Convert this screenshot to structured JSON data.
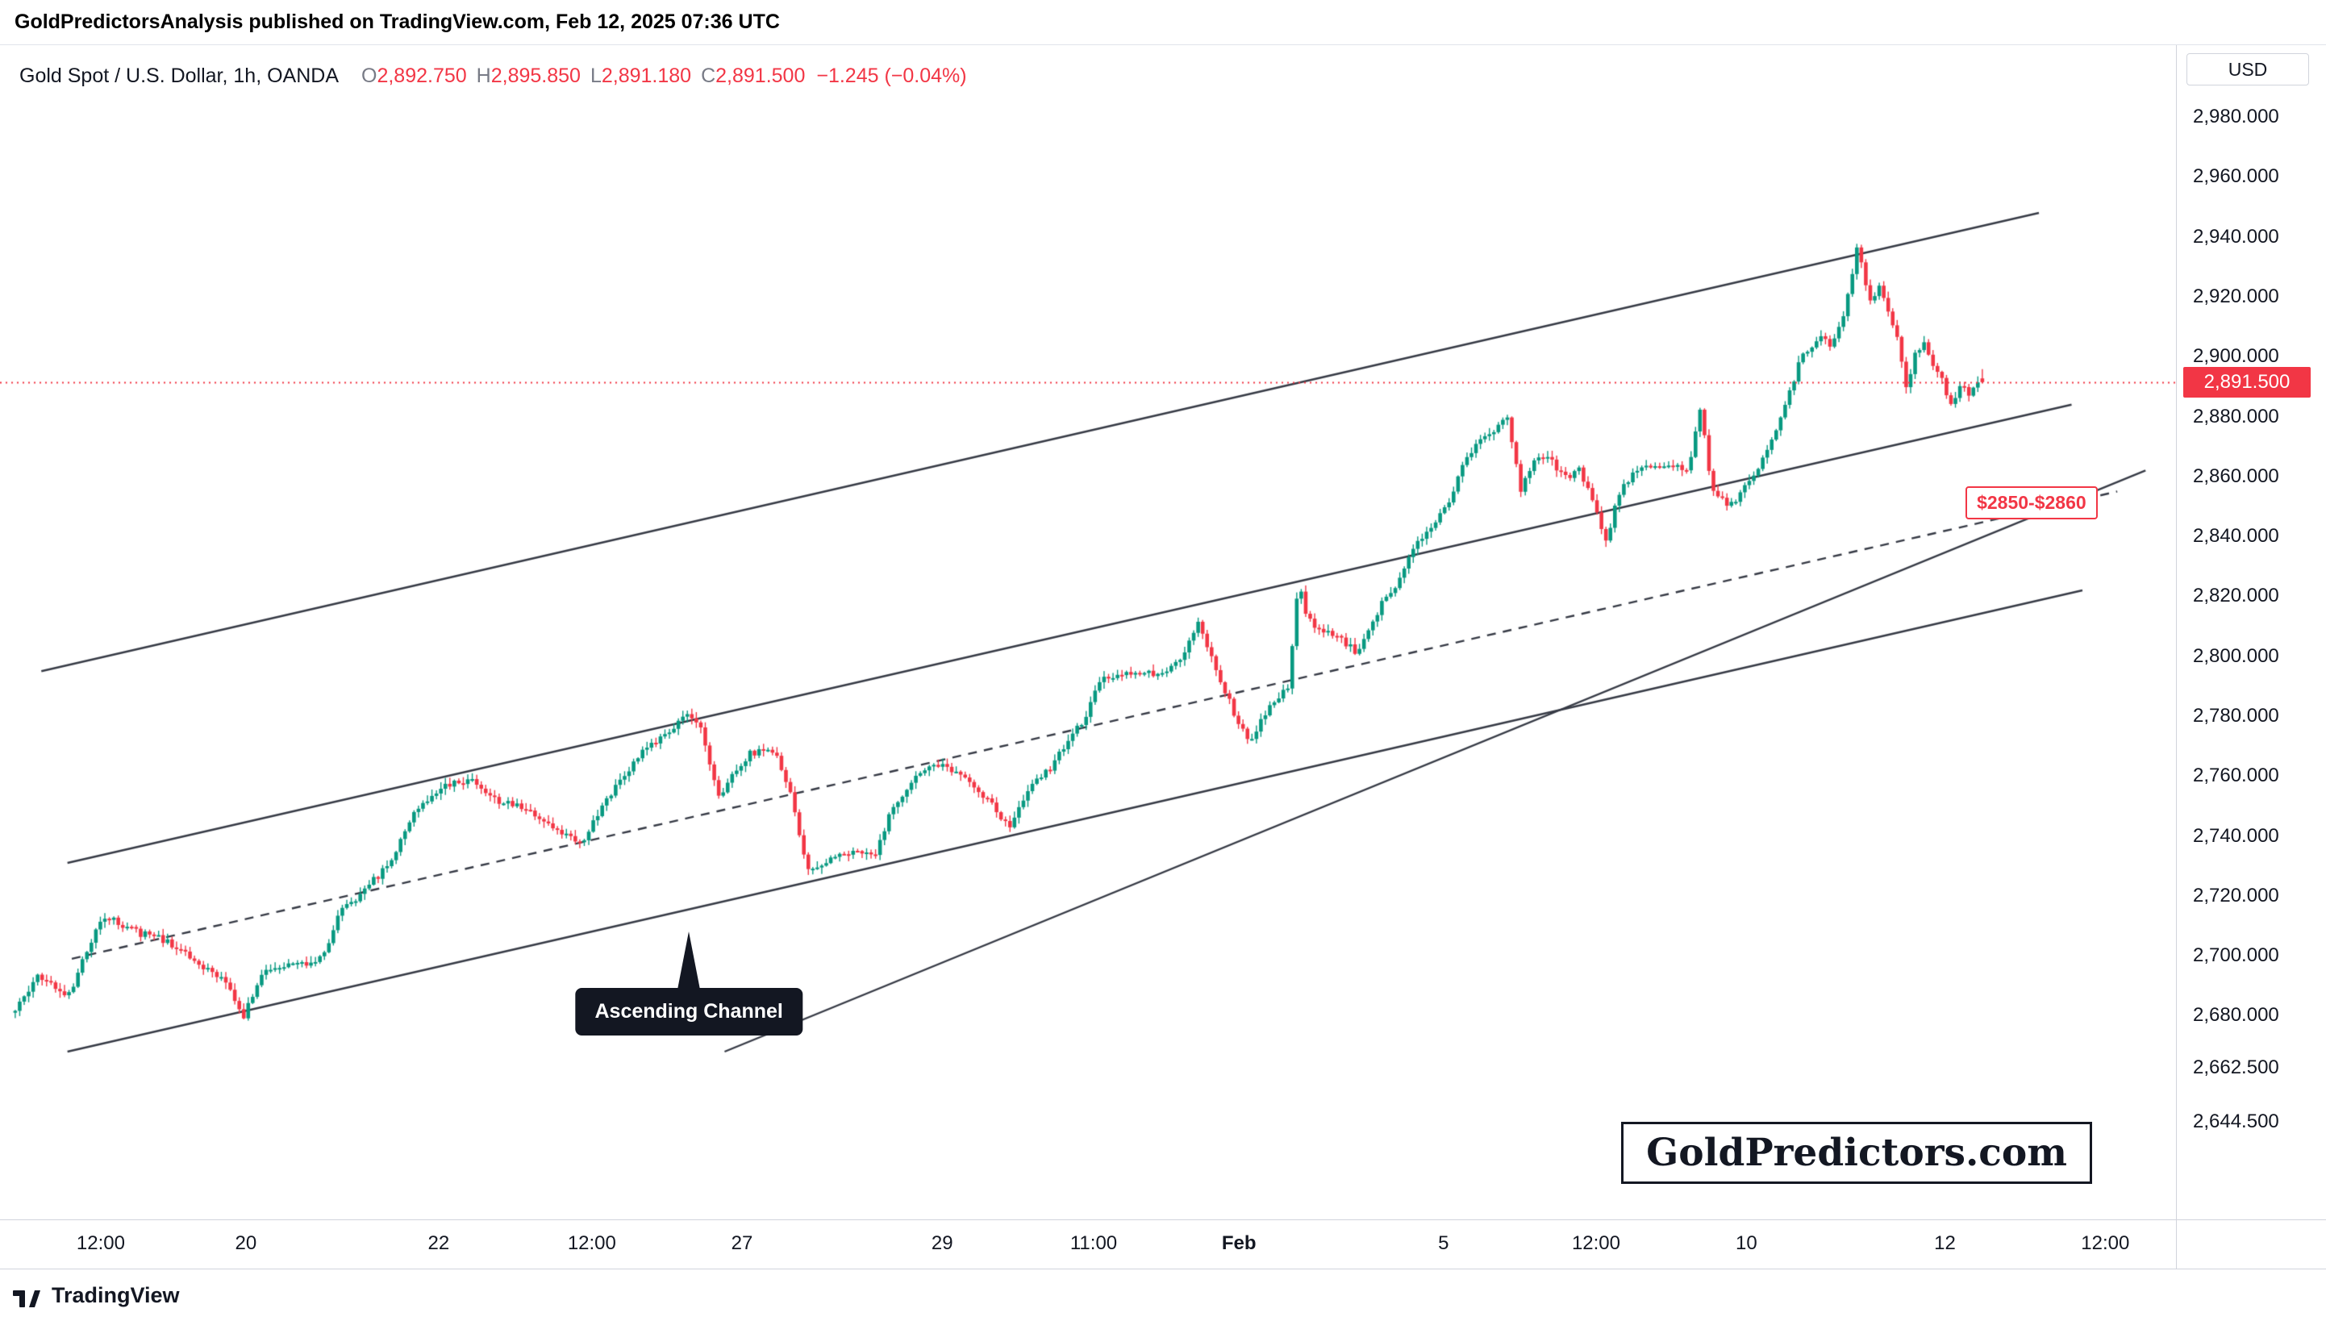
{
  "topbar": {
    "text": "GoldPredictorsAnalysis published on TradingView.com, Feb 12, 2025 07:36 UTC"
  },
  "header": {
    "symbol_line": "Gold Spot / U.S. Dollar, 1h, OANDA",
    "o_label": "O",
    "o": "2,892.750",
    "h_label": "H",
    "h": "2,895.850",
    "l_label": "L",
    "l": "2,891.180",
    "c_label": "C",
    "c": "2,891.500",
    "change": "−1.245 (−0.04%)"
  },
  "axis": {
    "currency": "USD",
    "badge": {
      "label": "2,891.500",
      "price": 2891.5,
      "color": "#F23645"
    },
    "ticks": [
      {
        "price": 2980,
        "label": "2,980.000"
      },
      {
        "price": 2960,
        "label": "2,960.000"
      },
      {
        "price": 2940,
        "label": "2,940.000"
      },
      {
        "price": 2920,
        "label": "2,920.000"
      },
      {
        "price": 2900,
        "label": "2,900.000"
      },
      {
        "price": 2880,
        "label": "2,880.000"
      },
      {
        "price": 2860,
        "label": "2,860.000"
      },
      {
        "price": 2840,
        "label": "2,840.000"
      },
      {
        "price": 2820,
        "label": "2,820.000"
      },
      {
        "price": 2800,
        "label": "2,800.000"
      },
      {
        "price": 2780,
        "label": "2,780.000"
      },
      {
        "price": 2760,
        "label": "2,760.000"
      },
      {
        "price": 2740,
        "label": "2,740.000"
      },
      {
        "price": 2720,
        "label": "2,720.000"
      },
      {
        "price": 2700,
        "label": "2,700.000"
      },
      {
        "price": 2680,
        "label": "2,680.000"
      },
      {
        "price": 2662.5,
        "label": "2,662.500"
      },
      {
        "price": 2644.5,
        "label": "2,644.500"
      }
    ]
  },
  "time_axis": [
    {
      "label": "12:00",
      "f": 0.0463,
      "bold": false
    },
    {
      "label": "20",
      "f": 0.113,
      "bold": false
    },
    {
      "label": "22",
      "f": 0.2016,
      "bold": false
    },
    {
      "label": "12:00",
      "f": 0.272,
      "bold": false
    },
    {
      "label": "27",
      "f": 0.341,
      "bold": false
    },
    {
      "label": "29",
      "f": 0.433,
      "bold": false
    },
    {
      "label": "11:00",
      "f": 0.5026,
      "bold": false
    },
    {
      "label": "Feb",
      "f": 0.5694,
      "bold": true
    },
    {
      "label": "5",
      "f": 0.6634,
      "bold": false
    },
    {
      "label": "12:00",
      "f": 0.7335,
      "bold": false
    },
    {
      "label": "10",
      "f": 0.8026,
      "bold": false
    },
    {
      "label": "12",
      "f": 0.8938,
      "bold": false
    },
    {
      "label": "12:00",
      "f": 0.9675,
      "bold": false
    }
  ],
  "annotations": {
    "channel_callout": {
      "text": "Ascending Channel",
      "x_f": 0.3166,
      "tip_price": 2708
    },
    "range_label": {
      "text": "$2850-$2860",
      "price": 2851,
      "x_f": 0.9033
    },
    "watermark": {
      "text": "GoldPredictors.com"
    }
  },
  "bottombar": {
    "brand": "TradingView"
  },
  "icons": {
    "bottombar_logo": "tradingview-logo"
  },
  "chart_data": {
    "type": "candlestick",
    "title": "Gold Spot / U.S. Dollar",
    "interval": "1h",
    "exchange": "OANDA",
    "ohlc_current": {
      "open": 2892.75,
      "high": 2895.85,
      "low": 2891.18,
      "close": 2891.5,
      "change": -1.245,
      "change_pct": -0.04
    },
    "last_price": 2891.5,
    "last_candle": [
      2892.75,
      2895.85,
      2891.18,
      2891.5
    ],
    "ylim": [
      2612,
      3004
    ],
    "grid": false,
    "candle_count": 440,
    "colors": {
      "up": "#089981",
      "down": "#F23645",
      "trendline": "#363A45",
      "last_price_line": "#F23645"
    },
    "price_path": [
      [
        0.007,
        2681
      ],
      [
        0.02,
        2693
      ],
      [
        0.034,
        2687
      ],
      [
        0.049,
        2714
      ],
      [
        0.058,
        2710
      ],
      [
        0.065,
        2708
      ],
      [
        0.078,
        2705
      ],
      [
        0.092,
        2698
      ],
      [
        0.106,
        2692
      ],
      [
        0.114,
        2680
      ],
      [
        0.123,
        2695
      ],
      [
        0.14,
        2697
      ],
      [
        0.151,
        2700
      ],
      [
        0.158,
        2714
      ],
      [
        0.17,
        2722
      ],
      [
        0.183,
        2733
      ],
      [
        0.194,
        2750
      ],
      [
        0.208,
        2757
      ],
      [
        0.22,
        2759
      ],
      [
        0.23,
        2752
      ],
      [
        0.242,
        2750
      ],
      [
        0.252,
        2745
      ],
      [
        0.26,
        2741
      ],
      [
        0.269,
        2738
      ],
      [
        0.281,
        2752
      ],
      [
        0.292,
        2763
      ],
      [
        0.3,
        2770
      ],
      [
        0.308,
        2774
      ],
      [
        0.317,
        2780
      ],
      [
        0.324,
        2776
      ],
      [
        0.33,
        2758
      ],
      [
        0.333,
        2753
      ],
      [
        0.339,
        2762
      ],
      [
        0.348,
        2768
      ],
      [
        0.358,
        2769
      ],
      [
        0.365,
        2755
      ],
      [
        0.374,
        2727
      ],
      [
        0.383,
        2732
      ],
      [
        0.394,
        2734
      ],
      [
        0.404,
        2733
      ],
      [
        0.412,
        2750
      ],
      [
        0.424,
        2760
      ],
      [
        0.431,
        2765
      ],
      [
        0.44,
        2762
      ],
      [
        0.449,
        2756
      ],
      [
        0.458,
        2750
      ],
      [
        0.466,
        2742
      ],
      [
        0.47,
        2748
      ],
      [
        0.477,
        2757
      ],
      [
        0.484,
        2762
      ],
      [
        0.492,
        2770
      ],
      [
        0.501,
        2780
      ],
      [
        0.508,
        2792
      ],
      [
        0.517,
        2794
      ],
      [
        0.526,
        2793
      ],
      [
        0.535,
        2795
      ],
      [
        0.542,
        2797
      ],
      [
        0.549,
        2805
      ],
      [
        0.553,
        2811
      ],
      [
        0.559,
        2800
      ],
      [
        0.564,
        2790
      ],
      [
        0.571,
        2778
      ],
      [
        0.576,
        2771
      ],
      [
        0.581,
        2778
      ],
      [
        0.588,
        2786
      ],
      [
        0.594,
        2790
      ],
      [
        0.599,
        2826
      ],
      [
        0.603,
        2812
      ],
      [
        0.61,
        2808
      ],
      [
        0.619,
        2806
      ],
      [
        0.626,
        2800
      ],
      [
        0.633,
        2812
      ],
      [
        0.639,
        2820
      ],
      [
        0.646,
        2826
      ],
      [
        0.653,
        2838
      ],
      [
        0.66,
        2842
      ],
      [
        0.668,
        2852
      ],
      [
        0.676,
        2866
      ],
      [
        0.683,
        2872
      ],
      [
        0.69,
        2876
      ],
      [
        0.695,
        2880
      ],
      [
        0.701,
        2856
      ],
      [
        0.708,
        2868
      ],
      [
        0.714,
        2866
      ],
      [
        0.721,
        2860
      ],
      [
        0.728,
        2862
      ],
      [
        0.735,
        2850
      ],
      [
        0.74,
        2838
      ],
      [
        0.745,
        2852
      ],
      [
        0.751,
        2860
      ],
      [
        0.758,
        2864
      ],
      [
        0.765,
        2862
      ],
      [
        0.772,
        2864
      ],
      [
        0.778,
        2862
      ],
      [
        0.784,
        2884
      ],
      [
        0.788,
        2858
      ],
      [
        0.793,
        2852
      ],
      [
        0.799,
        2850
      ],
      [
        0.804,
        2858
      ],
      [
        0.811,
        2864
      ],
      [
        0.817,
        2872
      ],
      [
        0.822,
        2882
      ],
      [
        0.828,
        2896
      ],
      [
        0.833,
        2903
      ],
      [
        0.838,
        2906
      ],
      [
        0.844,
        2904
      ],
      [
        0.848,
        2910
      ],
      [
        0.852,
        2922
      ],
      [
        0.856,
        2938
      ],
      [
        0.859,
        2925
      ],
      [
        0.862,
        2918
      ],
      [
        0.866,
        2924
      ],
      [
        0.87,
        2916
      ],
      [
        0.874,
        2906
      ],
      [
        0.878,
        2890
      ],
      [
        0.882,
        2900
      ],
      [
        0.886,
        2906
      ],
      [
        0.89,
        2898
      ],
      [
        0.894,
        2894
      ],
      [
        0.898,
        2884
      ],
      [
        0.903,
        2890
      ],
      [
        0.907,
        2888
      ],
      [
        0.911,
        2891.5
      ]
    ],
    "trendlines": [
      {
        "name": "channel-top",
        "style": "solid",
        "x1_f": 0.019,
        "price1": 2795,
        "x2_f": 0.937,
        "price2": 2948
      },
      {
        "name": "channel-inner-upper",
        "style": "solid",
        "x1_f": 0.031,
        "price1": 2731,
        "x2_f": 0.952,
        "price2": 2884
      },
      {
        "name": "channel-midline",
        "style": "dashed",
        "x1_f": 0.033,
        "price1": 2699,
        "x2_f": 0.973,
        "price2": 2855
      },
      {
        "name": "lower-rising-line",
        "style": "solid",
        "x1_f": 0.333,
        "price1": 2668,
        "x2_f": 0.986,
        "price2": 2862
      },
      {
        "name": "channel-bottom",
        "style": "solid",
        "x1_f": 0.031,
        "price1": 2668,
        "x2_f": 0.957,
        "price2": 2822
      }
    ]
  }
}
